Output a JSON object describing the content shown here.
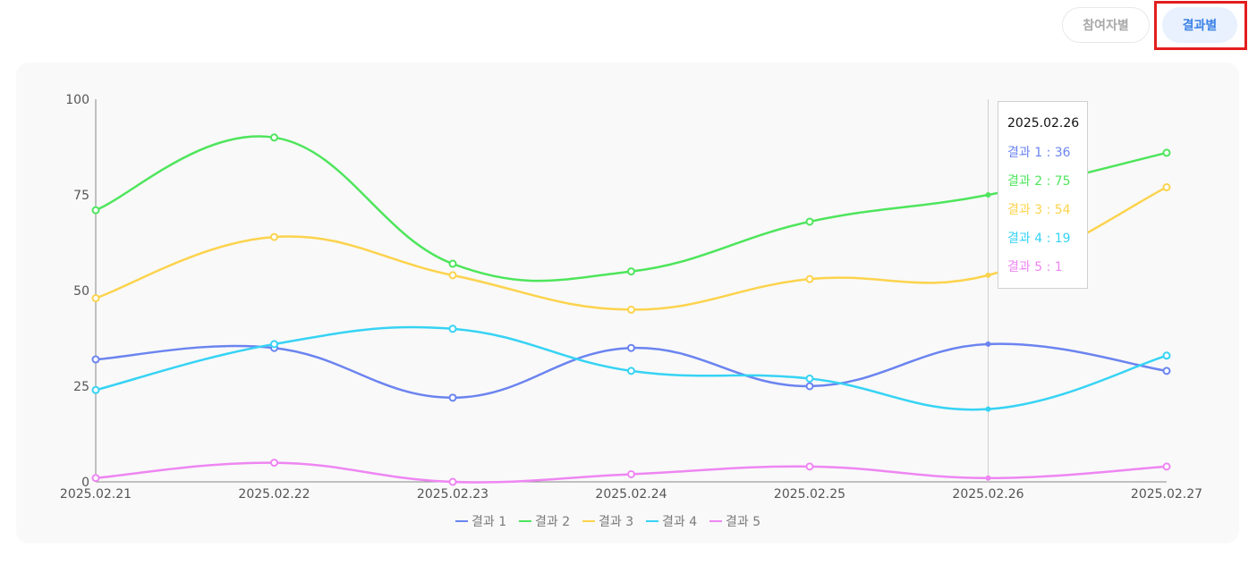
{
  "toggle": {
    "participant_label": "참여자별",
    "result_label": "결과별",
    "selected": "결과별"
  },
  "colors": {
    "series": [
      "#6b84f0",
      "#4ee55c",
      "#fcd34d",
      "#36d3f4",
      "#ee86f2"
    ],
    "highlight": "#e31e1e"
  },
  "chart_data": {
    "type": "line",
    "x": [
      "2025.02.21",
      "2025.02.22",
      "2025.02.23",
      "2025.02.24",
      "2025.02.25",
      "2025.02.26",
      "2025.02.27"
    ],
    "ylim": [
      0,
      100
    ],
    "yticks": [
      0,
      25,
      50,
      75,
      100
    ],
    "series": [
      {
        "name": "결과 1",
        "values": [
          32,
          35,
          22,
          35,
          25,
          36,
          29
        ]
      },
      {
        "name": "결과 2",
        "values": [
          71,
          90,
          57,
          55,
          68,
          75,
          86
        ]
      },
      {
        "name": "결과 3",
        "values": [
          48,
          64,
          54,
          45,
          53,
          54,
          77
        ]
      },
      {
        "name": "결과 4",
        "values": [
          24,
          36,
          40,
          29,
          27,
          19,
          33
        ]
      },
      {
        "name": "결과 5",
        "values": [
          1,
          5,
          0,
          2,
          4,
          1,
          4
        ]
      }
    ],
    "legend": "bottom-center",
    "smooth": true,
    "tooltip": {
      "title": "2025.02.26",
      "rows": [
        "결과 1 : 36",
        "결과 2 : 75",
        "결과 3 : 54",
        "결과 4 : 19",
        "결과 5 : 1"
      ]
    }
  }
}
